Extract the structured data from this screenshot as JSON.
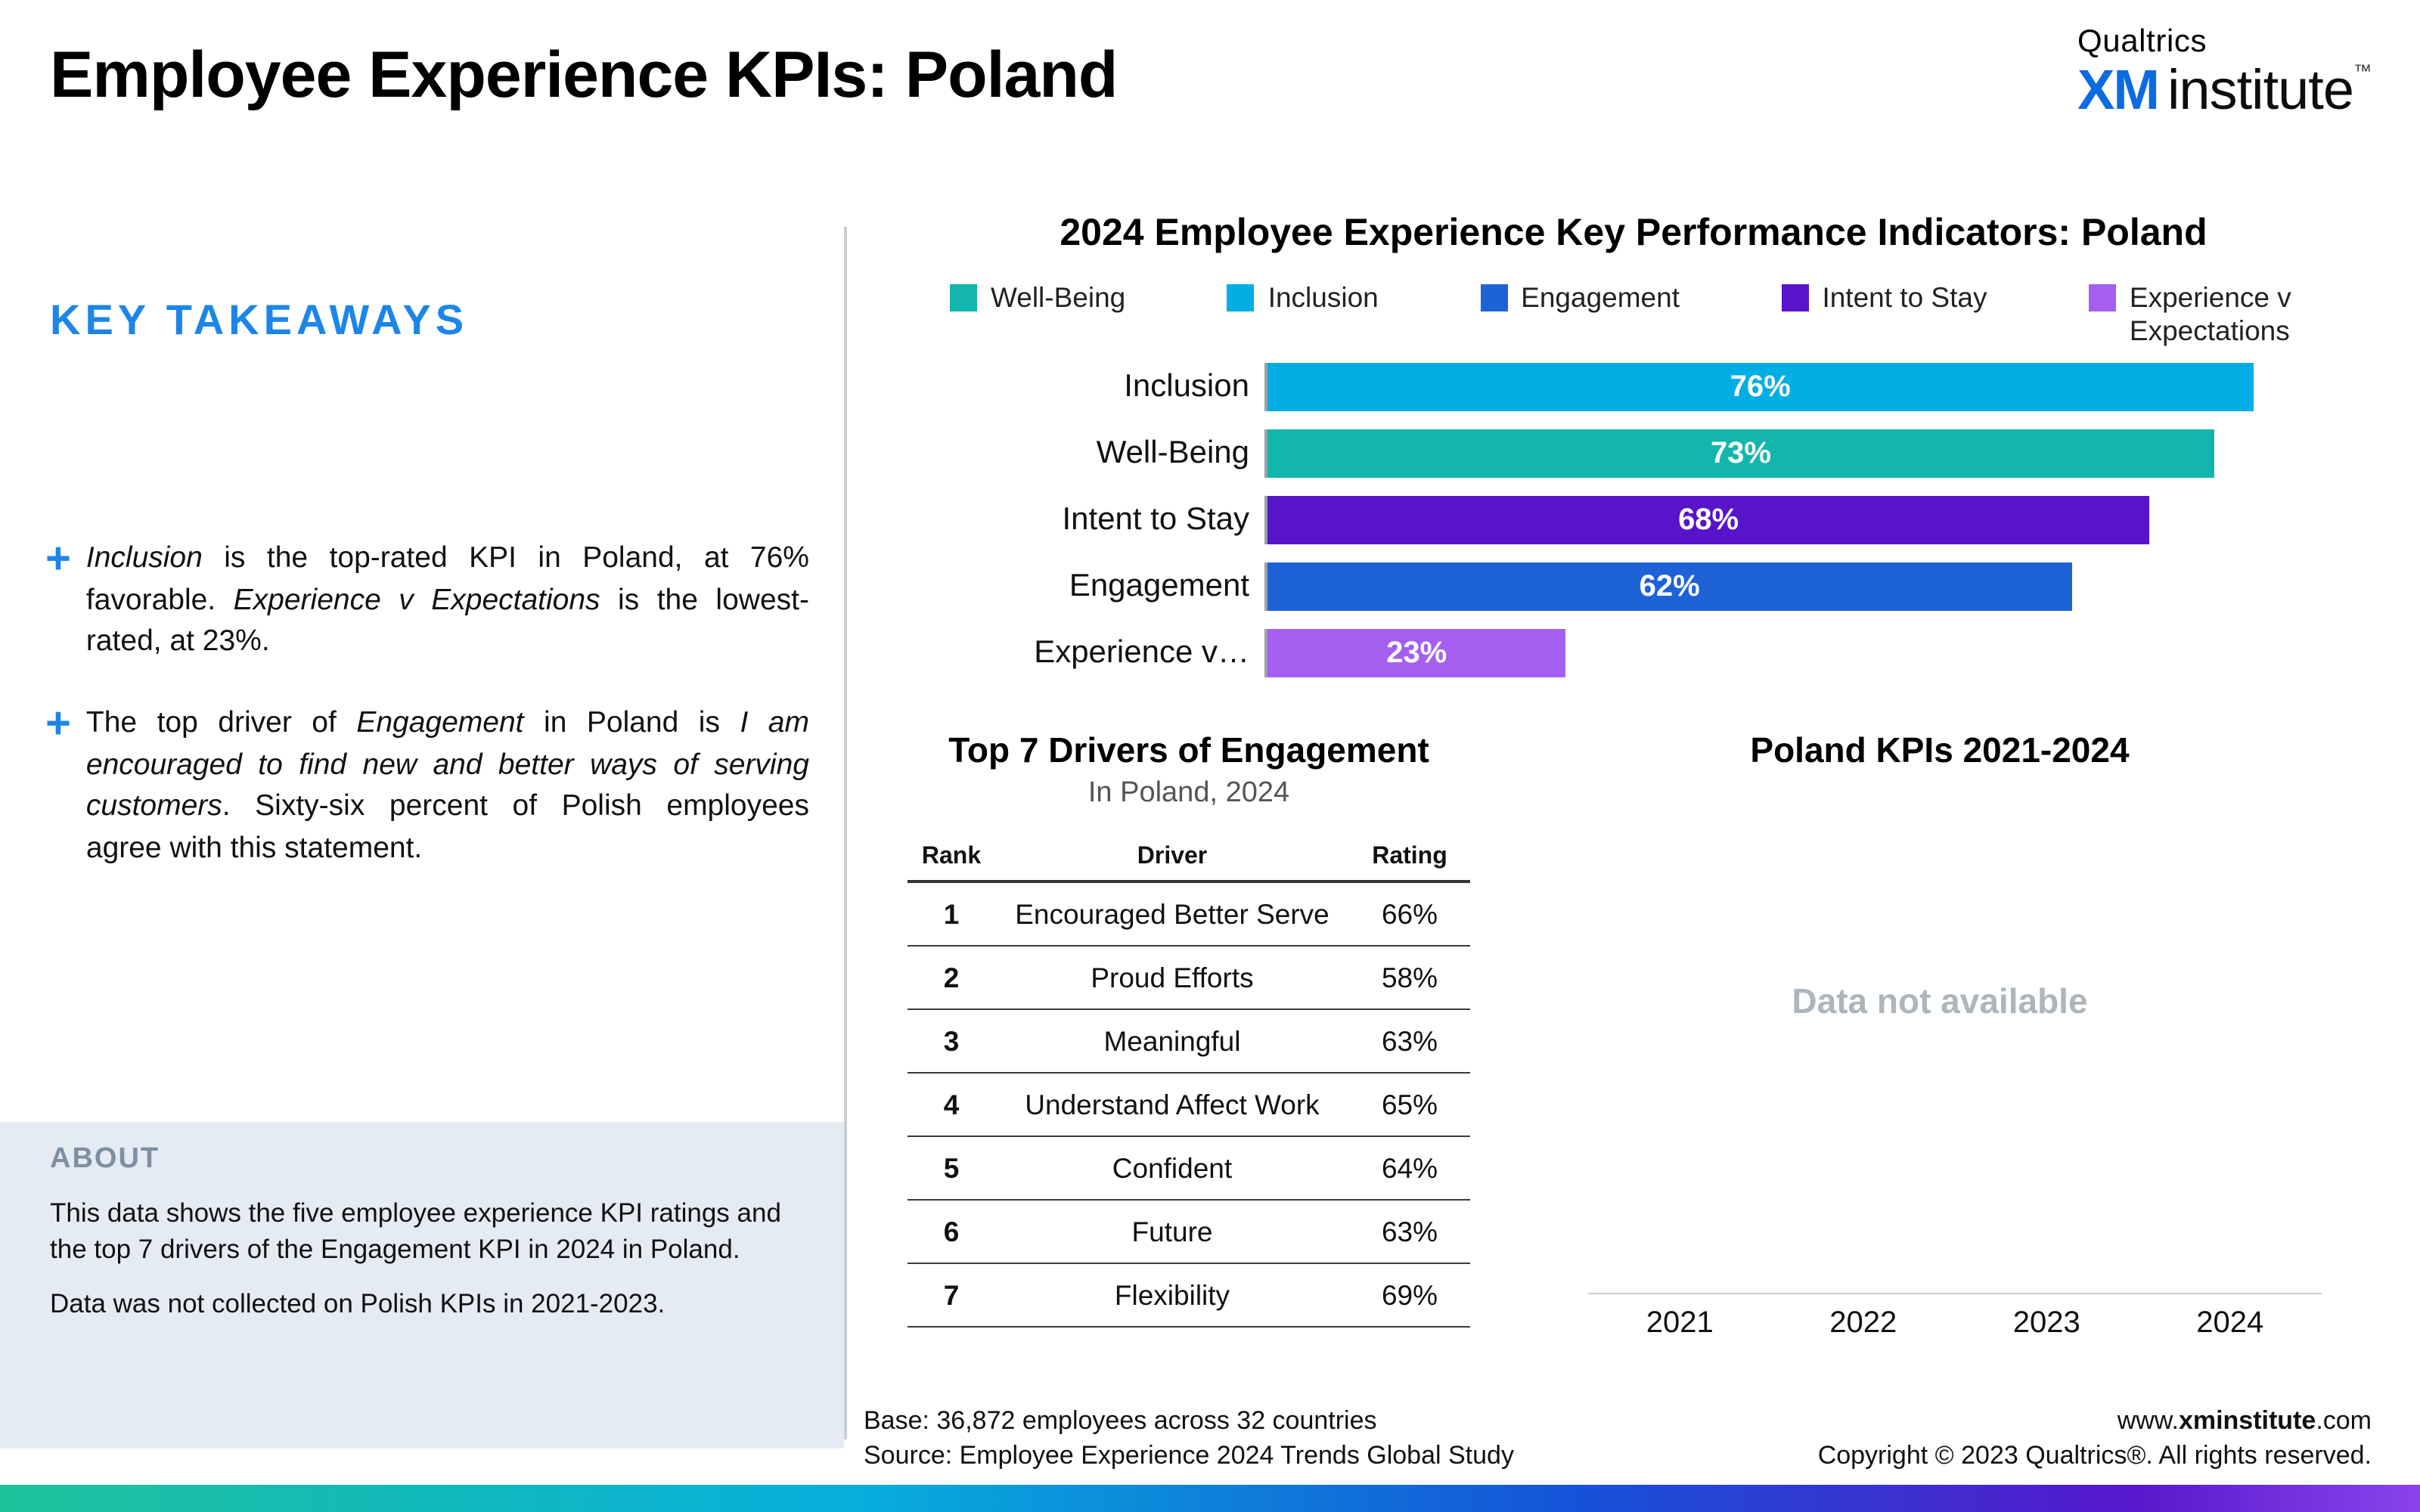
{
  "page": {
    "title": "Employee Experience KPIs: Poland"
  },
  "logo": {
    "brand": "Qualtrics",
    "xm": "XM",
    "institute": "institute",
    "tm": "™"
  },
  "sidebar": {
    "heading": "KEY TAKEAWAYS",
    "bullet_glyph": "+",
    "takeaways": [
      {
        "segments": [
          {
            "text": "Inclusion",
            "italic": true
          },
          {
            "text": " is the top-rated KPI in Poland, at 76% favorable. ",
            "italic": false
          },
          {
            "text": "Experience v Expectations",
            "italic": true
          },
          {
            "text": " is the lowest-rated, at 23%.",
            "italic": false
          }
        ]
      },
      {
        "segments": [
          {
            "text": "The top driver of ",
            "italic": false
          },
          {
            "text": "Engagement",
            "italic": true
          },
          {
            "text": " in Poland is ",
            "italic": false
          },
          {
            "text": "I am encouraged to find new and better ways of serving customers",
            "italic": true
          },
          {
            "text": ". Sixty-six percent of Polish employees agree with this statement.",
            "italic": false
          }
        ]
      }
    ],
    "about": {
      "heading": "ABOUT",
      "paragraphs": [
        "This data shows the five employee experience KPI ratings and the top 7 drivers of the Engagement KPI in 2024 in Poland.",
        "Data was not collected on Polish KPIs in 2021-2023."
      ]
    }
  },
  "chart_data": [
    {
      "type": "bar",
      "orientation": "horizontal",
      "title": "2024 Employee Experience Key Performance Indicators: Poland",
      "categories": [
        "Inclusion",
        "Well-Being",
        "Intent to Stay",
        "Engagement",
        "Experience v…"
      ],
      "values": [
        76,
        73,
        68,
        62,
        23
      ],
      "value_labels": [
        "76%",
        "73%",
        "68%",
        "62%",
        "23%"
      ],
      "colors": [
        "#00AEE4",
        "#12B6AC",
        "#5714C9",
        "#1E63D6",
        "#A55FF0"
      ],
      "xlim": [
        0,
        80
      ],
      "grid": false,
      "legend_position": "top",
      "legend": [
        {
          "label": "Well-Being",
          "color": "#12B6AC"
        },
        {
          "label": "Inclusion",
          "color": "#00AEE4"
        },
        {
          "label": "Engagement",
          "color": "#1E63D6"
        },
        {
          "label": "Intent to Stay",
          "color": "#5714C9"
        },
        {
          "label": "Experience v Expectations",
          "color": "#A55FF0"
        }
      ]
    },
    {
      "type": "table",
      "title": "Top 7 Drivers of Engagement",
      "subtitle": "In Poland, 2024",
      "columns": [
        "Rank",
        "Driver",
        "Rating"
      ],
      "rows": [
        [
          "1",
          "Encouraged Better Serve",
          "66%"
        ],
        [
          "2",
          "Proud Efforts",
          "58%"
        ],
        [
          "3",
          "Meaningful",
          "63%"
        ],
        [
          "4",
          "Understand Affect Work",
          "65%"
        ],
        [
          "5",
          "Confident",
          "64%"
        ],
        [
          "6",
          "Future",
          "63%"
        ],
        [
          "7",
          "Flexibility",
          "69%"
        ]
      ]
    },
    {
      "type": "line",
      "title": "Poland KPIs 2021-2024",
      "x": [
        "2021",
        "2022",
        "2023",
        "2024"
      ],
      "series": [],
      "note": "Data not available"
    }
  ],
  "footer": {
    "base": "Base: 36,872 employees across 32 countries",
    "source": "Source: Employee Experience 2024 Trends Global Study",
    "url_prefix": "www.",
    "url_bold": "xminstitute",
    "url_suffix": ".com",
    "copyright": "Copyright © 2023 Qualtrics®. All rights reserved."
  },
  "colors": {
    "accent_blue": "#1C86E8",
    "xm_blue": "#0C6BE0",
    "about_bg": "#E4EBF3",
    "bottom_gradient": [
      "#1EC29A",
      "#06B0DC",
      "#1553D8",
      "#8A43EC"
    ]
  }
}
